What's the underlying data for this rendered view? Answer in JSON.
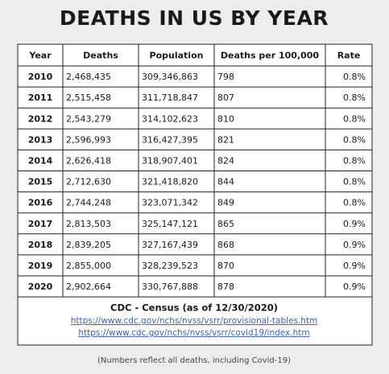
{
  "header": {
    "title": "DEATHS IN US BY YEAR"
  },
  "table": {
    "columns": [
      "Year",
      "Deaths",
      "Population",
      "Deaths per 100,000",
      "Rate"
    ],
    "rows": [
      [
        "2010",
        "2,468,435",
        "309,346,863",
        "798",
        "0.8%"
      ],
      [
        "2011",
        "2,515,458",
        "311,718,847",
        "807",
        "0.8%"
      ],
      [
        "2012",
        "2,543,279",
        "314,102,623",
        "810",
        "0.8%"
      ],
      [
        "2013",
        "2,596,993",
        "316,427,395",
        "821",
        "0.8%"
      ],
      [
        "2014",
        "2,626,418",
        "318,907,401",
        "824",
        "0.8%"
      ],
      [
        "2015",
        "2,712,630",
        "321,418,820",
        "844",
        "0.8%"
      ],
      [
        "2016",
        "2,744,248",
        "323,071,342",
        "849",
        "0.8%"
      ],
      [
        "2017",
        "2,813,503",
        "325,147,121",
        "865",
        "0.9%"
      ],
      [
        "2018",
        "2,839,205",
        "327,167,439",
        "868",
        "0.9%"
      ],
      [
        "2019",
        "2,855,000",
        "328,239,523",
        "870",
        "0.9%"
      ],
      [
        "2020",
        "2,902,664",
        "330,767,888",
        "878",
        "0.9%"
      ]
    ],
    "source": "CDC - Census (as of 12/30/2020)",
    "links": [
      "https://www.cdc.gov/nchs/nvss/vsrr/provisional-tables.htm",
      "https://www.cdc.gov/nchs/nvss/vsrr/covid19/index.htm"
    ]
  },
  "note": "(Numbers reflect all deaths, including Covid-19)"
}
